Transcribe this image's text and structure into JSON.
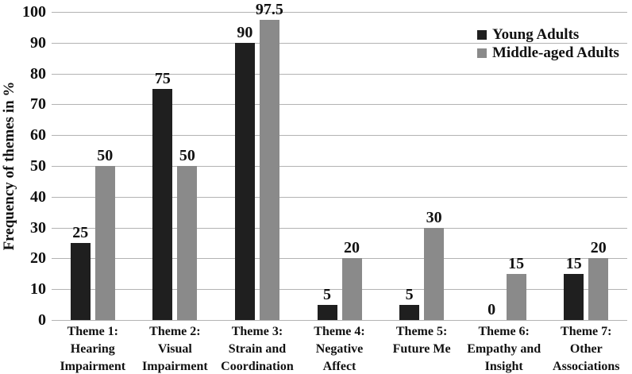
{
  "chart_data": {
    "type": "bar",
    "title": "",
    "ylabel": "Frequency of themes in %",
    "xlabel": "",
    "ylim": [
      0,
      100
    ],
    "yticks": [
      0,
      10,
      20,
      30,
      40,
      50,
      60,
      70,
      80,
      90,
      100
    ],
    "grid": true,
    "legend_position": "top-right",
    "bar_value_labels_shown": true,
    "categories": [
      "Theme 1:\nHearing\nImpairment",
      "Theme 2:\nVisual\nImpairment",
      "Theme 3:\nStrain and\nCoordination",
      "Theme 4:\nNegative\nAffect",
      "Theme 5:\nFuture Me",
      "Theme 6:\nEmpathy and\nInsight",
      "Theme 7:\nOther\nAssociations"
    ],
    "series": [
      {
        "name": "Young Adults",
        "color": "#1f1f1f",
        "values": [
          25,
          75,
          90,
          5,
          5,
          0,
          15
        ]
      },
      {
        "name": "Middle-aged Adults",
        "color": "#8a8a8a",
        "values": [
          50,
          50,
          97.5,
          20,
          30,
          15,
          20
        ]
      }
    ],
    "colors": {
      "gridline": "#b3b3b3",
      "text": "#111111",
      "background": "#ffffff"
    }
  }
}
